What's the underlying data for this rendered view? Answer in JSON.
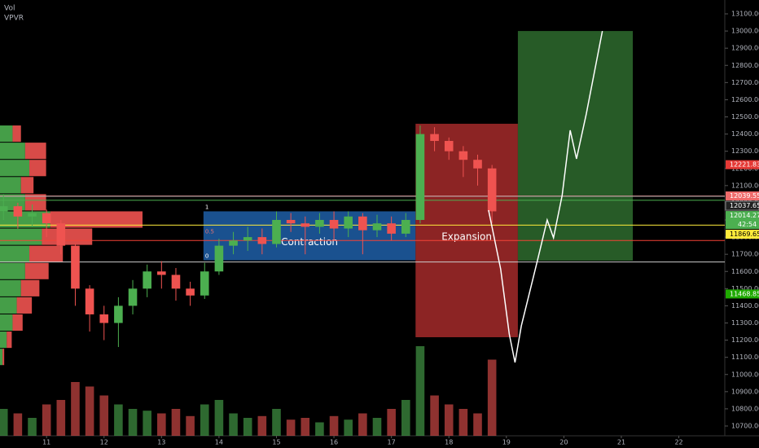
{
  "chart_data": {
    "type": "candlestick",
    "indicators": [
      "Vol",
      "VPVR"
    ],
    "xlim": [
      10.19,
      22.8
    ],
    "xticks": [
      11,
      12,
      13,
      14,
      15,
      16,
      17,
      18,
      19,
      20,
      21,
      22
    ],
    "ylim": [
      10700,
      13100
    ],
    "yticks": [
      {
        "value": 10700,
        "label": "10700.00"
      },
      {
        "value": 10800,
        "label": "10800.00"
      },
      {
        "value": 10900,
        "label": "10900.00"
      },
      {
        "value": 11000,
        "label": "11000.00"
      },
      {
        "value": 11100,
        "label": "11100.00"
      },
      {
        "value": 11200,
        "label": "11200.00"
      },
      {
        "value": 11300,
        "label": "11300.00"
      },
      {
        "value": 11400,
        "label": "11400.00"
      },
      {
        "value": 11500,
        "label": "11500.00"
      },
      {
        "value": 11600,
        "label": "11600.00"
      },
      {
        "value": 11700,
        "label": "11700.00"
      },
      {
        "value": 11800,
        "label": "11800.00"
      },
      {
        "value": 11900,
        "label": "11900.00"
      },
      {
        "value": 12000,
        "label": "12000.00"
      },
      {
        "value": 12100,
        "label": "12100.00"
      },
      {
        "value": 12200,
        "label": "12200.00"
      },
      {
        "value": 12300,
        "label": "12300.00"
      },
      {
        "value": 12400,
        "label": "12400.00"
      },
      {
        "value": 12500,
        "label": "12500.00"
      },
      {
        "value": 12600,
        "label": "12600.00"
      },
      {
        "value": 12700,
        "label": "12700.00"
      },
      {
        "value": 12800,
        "label": "12800.00"
      },
      {
        "value": 12900,
        "label": "12900.00"
      },
      {
        "value": 13000,
        "label": "13000.00"
      },
      {
        "value": 13100,
        "label": "13100.00"
      }
    ],
    "up_color": "#4caf50",
    "down_color": "#ef5350",
    "candles": {
      "x": [
        10.25,
        10.5,
        10.75,
        11,
        11.25,
        11.5,
        11.75,
        12,
        12.25,
        12.5,
        12.75,
        13,
        13.25,
        13.5,
        13.75,
        14,
        14.25,
        14.5,
        14.75,
        15,
        15.25,
        15.5,
        15.75,
        16,
        16.25,
        16.5,
        16.75,
        17,
        17.25,
        17.5,
        17.75,
        18,
        18.25,
        18.5,
        18.75
      ],
      "open": [
        11950,
        11980,
        11920,
        11940,
        11880,
        11750,
        11500,
        11350,
        11300,
        11400,
        11500,
        11600,
        11580,
        11500,
        11460,
        11600,
        11750,
        11780,
        11800,
        11760,
        11900,
        11880,
        11860,
        11900,
        11850,
        11920,
        11840,
        11880,
        11820,
        11900,
        12400,
        12360,
        12300,
        12250,
        12200
      ],
      "high": [
        12050,
        12000,
        11990,
        11960,
        11900,
        11760,
        11520,
        11400,
        11450,
        11550,
        11640,
        11660,
        11620,
        11540,
        11650,
        11790,
        11830,
        11860,
        11850,
        11950,
        11940,
        11920,
        11940,
        11950,
        11950,
        11940,
        11930,
        11920,
        11940,
        12450,
        12440,
        12380,
        12330,
        12280,
        12220
      ],
      "low": [
        11900,
        11850,
        11860,
        11800,
        11700,
        11400,
        11250,
        11200,
        11160,
        11350,
        11450,
        11500,
        11430,
        11400,
        11440,
        11580,
        11700,
        11720,
        11700,
        11740,
        11830,
        11700,
        11820,
        11780,
        11800,
        11700,
        11800,
        11780,
        11800,
        11880,
        12300,
        12250,
        12150,
        12100,
        11880
      ],
      "close": [
        11980,
        11920,
        11940,
        11880,
        11750,
        11500,
        11350,
        11300,
        11400,
        11500,
        11600,
        11580,
        11500,
        11460,
        11600,
        11750,
        11780,
        11800,
        11760,
        11900,
        11880,
        11860,
        11900,
        11850,
        11920,
        11840,
        11880,
        11820,
        11900,
        12400,
        12360,
        12300,
        12250,
        12200,
        11950
      ],
      "volume": [
        30,
        25,
        20,
        35,
        40,
        60,
        55,
        45,
        35,
        30,
        28,
        25,
        30,
        22,
        35,
        40,
        25,
        20,
        22,
        30,
        18,
        20,
        15,
        22,
        18,
        25,
        20,
        30,
        40,
        100,
        45,
        35,
        30,
        25,
        85
      ]
    },
    "volume_profile": {
      "price": [
        11100,
        11200,
        11300,
        11400,
        11500,
        11600,
        11700,
        11800,
        11900,
        12000,
        12100,
        12200,
        12300,
        12400
      ],
      "buy": [
        3,
        8,
        15,
        20,
        25,
        30,
        35,
        50,
        60,
        30,
        25,
        35,
        30,
        15
      ],
      "sell": [
        2,
        6,
        12,
        18,
        22,
        28,
        40,
        60,
        110,
        25,
        15,
        20,
        25,
        10
      ]
    },
    "boxes": [
      {
        "x0": 13.73,
        "x1": 17.42,
        "y0": 11665,
        "y1": 11950,
        "color": "#1e5fa8",
        "label": "Contraction",
        "fib": [
          "1",
          "0.5",
          "0"
        ]
      },
      {
        "x0": 17.42,
        "x1": 19.2,
        "y0": 11217,
        "y1": 12460,
        "color": "#a52a2a",
        "label": "Expansion"
      },
      {
        "x0": 19.2,
        "x1": 21.2,
        "y0": 11663,
        "y1": 13000,
        "color": "#2e6b2e"
      }
    ],
    "projection": {
      "x": [
        18.69,
        18.9,
        19.05,
        19.15,
        19.26,
        19.54,
        19.71,
        19.82,
        19.97,
        20.11,
        20.22,
        20.39,
        20.67
      ],
      "y": [
        11957,
        11615,
        11236,
        11070,
        11283,
        11663,
        11900,
        11796,
        12042,
        12422,
        12256,
        12517,
        13000
      ]
    },
    "hlines": [
      {
        "price": 11780,
        "color": "#f44336"
      },
      {
        "price": 11655,
        "color": "#cccccc"
      }
    ],
    "price_tags": [
      {
        "value": 12221.83,
        "color": "#e53935",
        "text_color": "#ffffff"
      },
      {
        "value": 12039.55,
        "color": "#ef6b6b",
        "text_color": "#ffffff",
        "line": true
      },
      {
        "value": 12037.65,
        "color": "#222222",
        "text_color": "#ffffff",
        "line": true
      },
      {
        "value": 12014.27,
        "color": "#4caf50",
        "text_color": "#ffffff",
        "line": true,
        "countdown": "42:54"
      },
      {
        "value": 11869.65,
        "color": "#ffeb3b",
        "text_color": "#000000",
        "line": true
      },
      {
        "value": 11468.85,
        "color": "#1faa00",
        "text_color": "#ffffff"
      }
    ]
  }
}
